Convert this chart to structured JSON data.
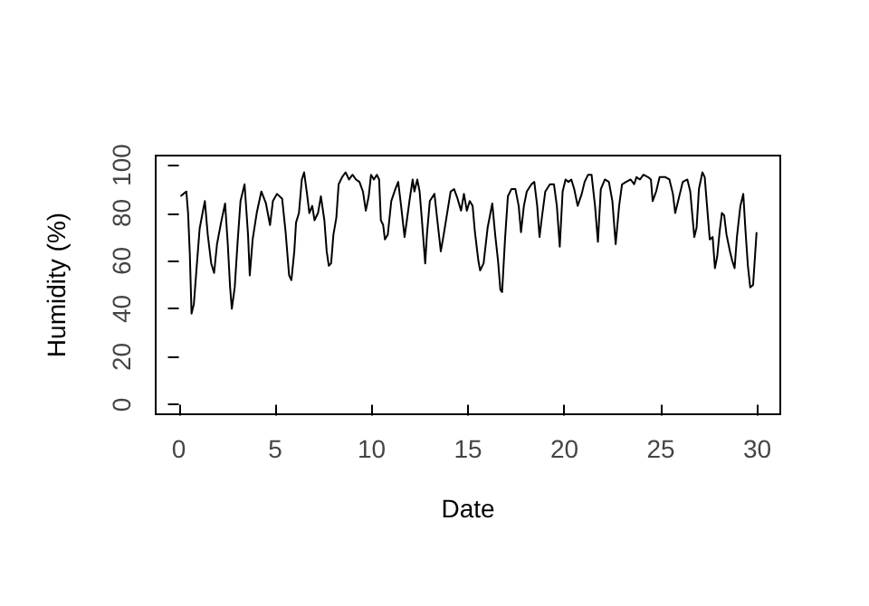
{
  "chart_data": {
    "type": "line",
    "xlabel": "Date",
    "ylabel": "Humidity (%)",
    "xlim": [
      -1.2,
      31.2
    ],
    "ylim": [
      -4,
      104
    ],
    "xticks": [
      0,
      5,
      10,
      15,
      20,
      25,
      30
    ],
    "yticks": [
      0,
      20,
      40,
      60,
      80,
      100
    ],
    "series": [
      {
        "color": "#000000",
        "x": [
          0.09,
          0.24,
          0.39,
          0.48,
          0.57,
          0.66,
          0.78,
          0.93,
          1.08,
          1.23,
          1.35,
          1.5,
          1.68,
          1.83,
          1.98,
          2.19,
          2.4,
          2.54,
          2.66,
          2.75,
          2.9,
          3.05,
          3.2,
          3.41,
          3.59,
          3.68,
          3.83,
          4.04,
          4.28,
          4.52,
          4.73,
          4.88,
          5.09,
          5.36,
          5.54,
          5.72,
          5.84,
          5.99,
          6.08,
          6.23,
          6.38,
          6.5,
          6.65,
          6.77,
          6.92,
          7.04,
          7.22,
          7.37,
          7.55,
          7.67,
          7.78,
          7.9,
          8.02,
          8.17,
          8.29,
          8.47,
          8.65,
          8.83,
          9.01,
          9.19,
          9.37,
          9.55,
          9.7,
          9.85,
          9.97,
          10.12,
          10.27,
          10.39,
          10.48,
          10.6,
          10.69,
          10.84,
          11.02,
          11.23,
          11.38,
          11.53,
          11.71,
          11.83,
          11.98,
          12.13,
          12.22,
          12.37,
          12.49,
          12.61,
          12.78,
          12.87,
          13.02,
          13.26,
          13.41,
          13.59,
          13.74,
          13.92,
          14.1,
          14.28,
          14.46,
          14.64,
          14.79,
          14.94,
          15.09,
          15.24,
          15.36,
          15.54,
          15.63,
          15.81,
          16.02,
          16.26,
          16.41,
          16.56,
          16.68,
          16.77,
          16.92,
          17.07,
          17.25,
          17.46,
          17.63,
          17.75,
          17.9,
          18.05,
          18.29,
          18.44,
          18.59,
          18.71,
          18.83,
          19.01,
          19.25,
          19.46,
          19.61,
          19.76,
          19.91,
          20.06,
          20.21,
          20.36,
          20.51,
          20.69,
          20.9,
          21.05,
          21.23,
          21.41,
          21.59,
          21.74,
          21.89,
          22.1,
          22.31,
          22.49,
          22.66,
          22.84,
          22.99,
          23.2,
          23.44,
          23.62,
          23.74,
          23.92,
          24.1,
          24.34,
          24.49,
          24.58,
          24.76,
          24.94,
          25.24,
          25.45,
          25.63,
          25.75,
          25.9,
          26.14,
          26.38,
          26.53,
          26.65,
          26.74,
          26.86,
          26.98,
          27.16,
          27.28,
          27.4,
          27.54,
          27.69,
          27.81,
          27.93,
          28.05,
          28.17,
          28.29,
          28.41,
          28.59,
          28.71,
          28.83,
          28.95,
          29.13,
          29.28,
          29.4,
          29.52,
          29.64,
          29.79,
          29.97
        ],
        "values": [
          87,
          88,
          89,
          80,
          63,
          38,
          42,
          58,
          73.5,
          80,
          85,
          71,
          59,
          55,
          67,
          76,
          84,
          67,
          49,
          40,
          49,
          68,
          85,
          92,
          71,
          54,
          69,
          80,
          89,
          84,
          75,
          85,
          88,
          86,
          72,
          54,
          52,
          64,
          76,
          80,
          94,
          97,
          88,
          80,
          83,
          77,
          80,
          87,
          77,
          64,
          58,
          59,
          71,
          78,
          92,
          95,
          97,
          94,
          96,
          94,
          93,
          89,
          81,
          87,
          96,
          94,
          96,
          94,
          77,
          75,
          69,
          71,
          85,
          90,
          93,
          83,
          70,
          77,
          86,
          94,
          89,
          94,
          89,
          77,
          59,
          71,
          85,
          88,
          77,
          64,
          71,
          80,
          89,
          90,
          86,
          81,
          88,
          81,
          85,
          83,
          72,
          60,
          56,
          59,
          74,
          84,
          71,
          60,
          48,
          47,
          69,
          87,
          90,
          90,
          83,
          72,
          83,
          89,
          92,
          93,
          83,
          70,
          78,
          89,
          92,
          92,
          83,
          66,
          89,
          94,
          93,
          94,
          90,
          83,
          88,
          93,
          96,
          96,
          83,
          68,
          90,
          94,
          93,
          85,
          67,
          83,
          92,
          93,
          94,
          92,
          95,
          94,
          96,
          95,
          94,
          85,
          89,
          95,
          95,
          94,
          88,
          80,
          85,
          93,
          94,
          89,
          78,
          70,
          74,
          90,
          97,
          95,
          83,
          69,
          70,
          57,
          62,
          72,
          80,
          79,
          71,
          64,
          60,
          57,
          70,
          83,
          88,
          72,
          58,
          49,
          50,
          72
        ]
      }
    ]
  }
}
